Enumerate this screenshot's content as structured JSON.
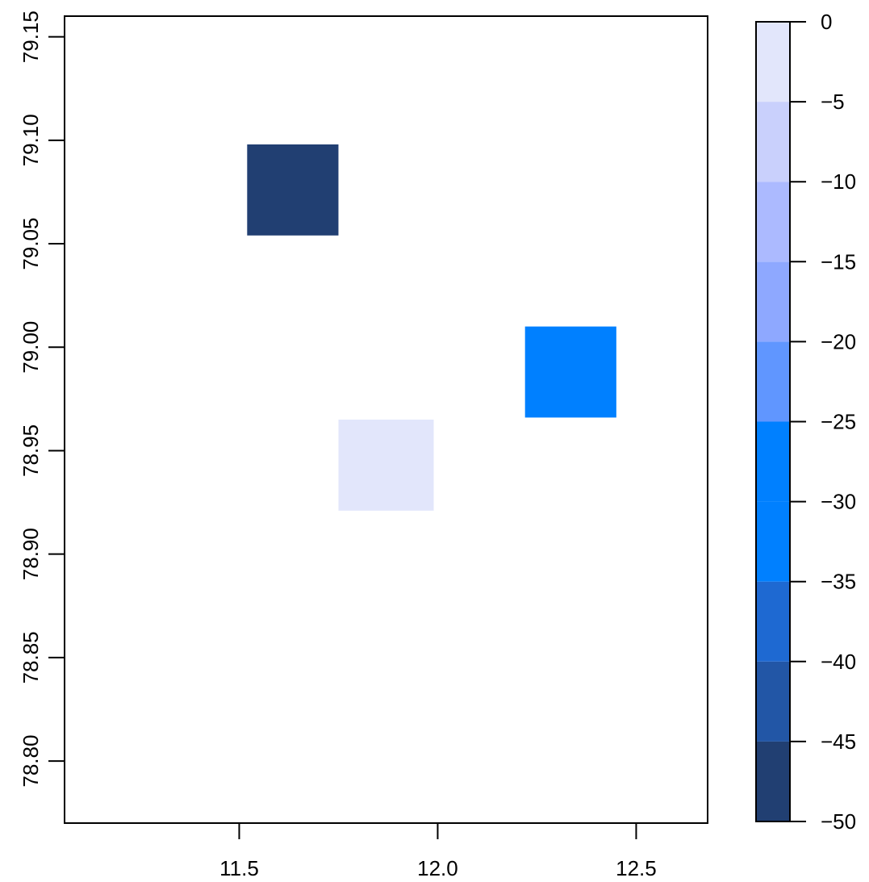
{
  "chart_data": {
    "type": "heatmap",
    "title": "",
    "xlabel": "",
    "ylabel": "",
    "xlim": [
      11.06,
      12.68
    ],
    "ylim": [
      78.77,
      79.16
    ],
    "x_ticks": [
      11.5,
      12.0,
      12.5
    ],
    "x_tick_labels": [
      "11.5",
      "12.0",
      "12.5"
    ],
    "y_ticks": [
      78.8,
      78.85,
      78.9,
      78.95,
      79.0,
      79.05,
      79.1,
      79.15
    ],
    "y_tick_labels": [
      "78.80",
      "78.85",
      "78.90",
      "78.95",
      "79.00",
      "79.05",
      "79.10",
      "79.15"
    ],
    "cells": [
      {
        "x0": 11.52,
        "x1": 11.75,
        "y0": 79.054,
        "y1": 79.098,
        "value": -47.5,
        "color": "#213f72"
      },
      {
        "x0": 12.22,
        "x1": 12.45,
        "y0": 78.966,
        "y1": 79.01,
        "value": -27.5,
        "color": "#0080ff"
      },
      {
        "x0": 11.75,
        "x1": 11.99,
        "y0": 78.921,
        "y1": 78.965,
        "value": -2.5,
        "color": "#e2e6fb"
      }
    ],
    "colorbar": {
      "range": [
        -50,
        0
      ],
      "ticks": [
        0,
        -5,
        -10,
        -15,
        -20,
        -25,
        -30,
        -35,
        -40,
        -45,
        -50
      ],
      "tick_labels": [
        "0",
        "−5",
        "−10",
        "−15",
        "−20",
        "−25",
        "−30",
        "−35",
        "−40",
        "−45",
        "−50"
      ],
      "bins": [
        {
          "from": -50,
          "to": -45,
          "color": "#213f72"
        },
        {
          "from": -45,
          "to": -40,
          "color": "#2256a6"
        },
        {
          "from": -40,
          "to": -35,
          "color": "#1e69d2"
        },
        {
          "from": -35,
          "to": -30,
          "color": "#0080ff"
        },
        {
          "from": -30,
          "to": -25,
          "color": "#0080ff"
        },
        {
          "from": -25,
          "to": -20,
          "color": "#6096ff"
        },
        {
          "from": -20,
          "to": -15,
          "color": "#8ea8ff"
        },
        {
          "from": -15,
          "to": -10,
          "color": "#acbaff"
        },
        {
          "from": -10,
          "to": -5,
          "color": "#c9d0fc"
        },
        {
          "from": -5,
          "to": 0,
          "color": "#e2e6fb"
        }
      ]
    }
  }
}
